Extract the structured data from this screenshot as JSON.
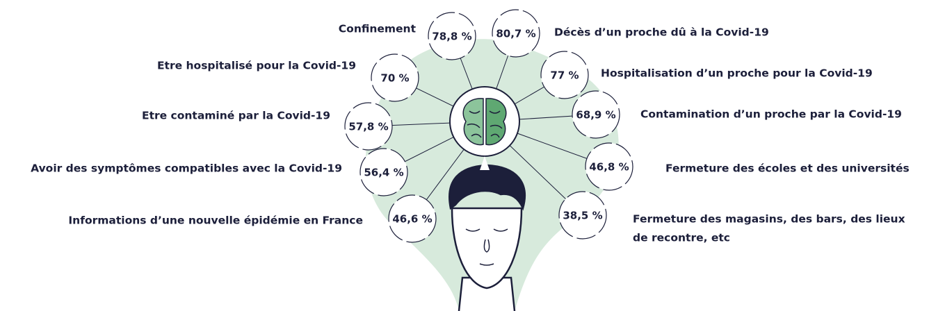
{
  "items": [
    {
      "label": [
        "Confinement"
      ],
      "value": "78,8 %"
    },
    {
      "label": [
        "Etre hospitalisé pour la Covid-19"
      ],
      "value": "70 %"
    },
    {
      "label": [
        "Etre contaminé par la Covid-19"
      ],
      "value": "57,8 %"
    },
    {
      "label": [
        "Avoir des symptômes compatibles avec la Covid-19"
      ],
      "value": "56,4 %"
    },
    {
      "label": [
        "Informations d’une nouvelle épidémie en France"
      ],
      "value": "46,6 %"
    },
    {
      "label": [
        "Décès d’un proche dû à la Covid-19"
      ],
      "value": "80,7 %"
    },
    {
      "label": [
        "Hospitalisation d’un proche pour la Covid-19"
      ],
      "value": "77 %"
    },
    {
      "label": [
        "Contamination d’un proche par la Covid-19"
      ],
      "value": "68,9 %"
    },
    {
      "label": [
        "Fermeture des écoles et des universités"
      ],
      "value": "46,8 %"
    },
    {
      "label": [
        "Fermeture des magasins, des bars, des lieux",
        "de recontre, etc"
      ],
      "value": "38,5 %"
    }
  ]
}
